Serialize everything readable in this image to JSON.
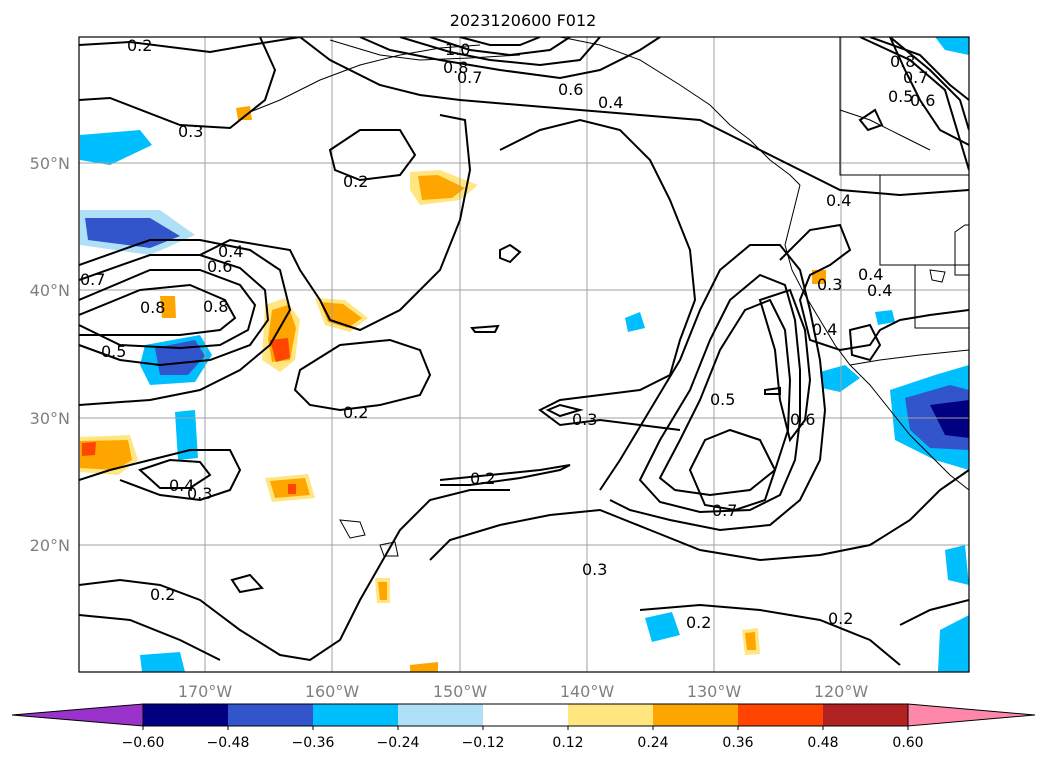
{
  "title": "2023120600 F012",
  "axes": {
    "lat_labels": [
      "50°N",
      "40°N",
      "30°N",
      "20°N"
    ],
    "lon_labels": [
      "170°W",
      "160°W",
      "150°W",
      "140°W",
      "130°W",
      "120°W"
    ]
  },
  "colorbar": {
    "ticks": [
      "−0.60",
      "−0.48",
      "−0.36",
      "−0.24",
      "−0.12",
      "0.12",
      "0.24",
      "0.36",
      "0.48",
      "0.60"
    ],
    "colors": [
      "#9933cc",
      "#000080",
      "#3355cc",
      "#00bfff",
      "#b0e0f8",
      "#ffffff",
      "#ffe680",
      "#ffa500",
      "#ff4500",
      "#b22222",
      "#ff88aa"
    ]
  },
  "contour_labels": [
    "0.2",
    "1.0",
    "0.8",
    "0.7",
    "0.6",
    "0.4",
    "0.3",
    "0.8",
    "0.7",
    "0.6",
    "0.5",
    "0.2",
    "0.4",
    "0.4",
    "0.7",
    "0.6",
    "0.8",
    "0.8",
    "0.5",
    "0.3",
    "0.4",
    "0.4",
    "0.4",
    "0.2",
    "0.3",
    "0.5",
    "0.6",
    "0.4",
    "0.3",
    "0.2",
    "0.7",
    "0.3",
    "0.2",
    "0.2",
    "0.2"
  ],
  "colors": {
    "contour": "#000000",
    "grid": "#a0a0a0",
    "axis_label": "#808080"
  }
}
